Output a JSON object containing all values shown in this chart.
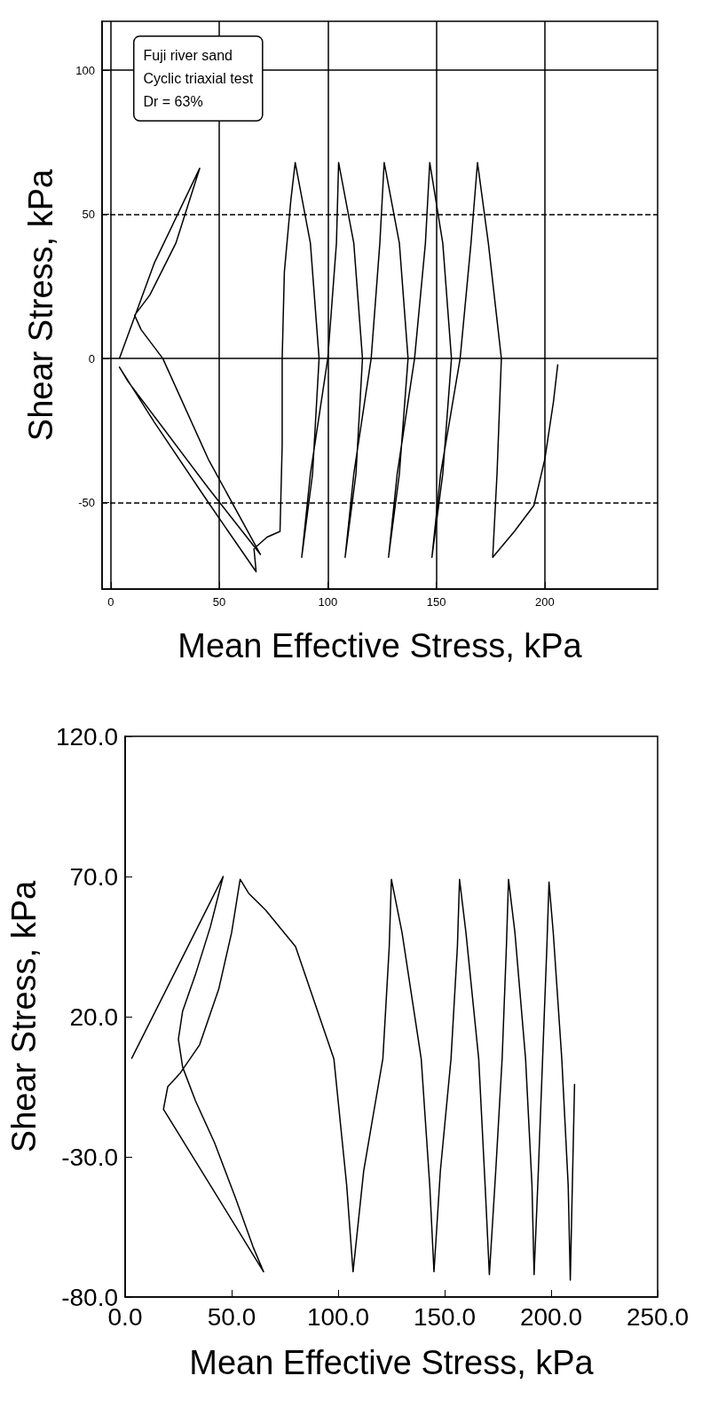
{
  "chart_data": [
    {
      "type": "line",
      "xlabel": "Mean Effective Stress, kPa",
      "ylabel": "Shear Stress, kPa",
      "annotations": [
        "Fuji river sand",
        "Cyclic triaxial test",
        "Dr = 63%"
      ],
      "xlim": [
        -4,
        252
      ],
      "xticks": [
        0,
        50,
        100,
        150,
        200
      ],
      "ylim": [
        -80,
        117
      ],
      "yticks": [
        -50,
        0,
        50,
        100
      ],
      "grid": "x",
      "ref_lines": [
        {
          "axis": "y",
          "value": 100,
          "label": null,
          "line_style": "solid"
        },
        {
          "axis": "y",
          "value": 50,
          "label": null,
          "line_style": "dashed"
        },
        {
          "axis": "y",
          "value": 0,
          "label": null,
          "line_style": "solid"
        },
        {
          "axis": "y",
          "value": -50,
          "label": null,
          "line_style": "dashed"
        }
      ],
      "series": [
        {
          "color": "#000000",
          "x": [
            4,
            20,
            41,
            30,
            18,
            11,
            14,
            24,
            45,
            69,
            45,
            25,
            8,
            4,
            20,
            45,
            67,
            66,
            72,
            78,
            79,
            79,
            80,
            83,
            85,
            92,
            96,
            93,
            88,
            92,
            100,
            104,
            105,
            112,
            116,
            113,
            108,
            112,
            120,
            124,
            126,
            133,
            137,
            133,
            128,
            132,
            140,
            145,
            147,
            153,
            157,
            153,
            148,
            152,
            161,
            166,
            169,
            174,
            180,
            178,
            176,
            186,
            195,
            200,
            204,
            206
          ],
          "values": [
            0,
            33,
            66,
            40,
            22,
            15,
            10,
            0,
            -35,
            -68,
            -45,
            -25,
            -8,
            -3,
            -22,
            -50,
            -74,
            -66,
            -62,
            -60,
            -30,
            0,
            30,
            55,
            68,
            40,
            0,
            -40,
            -69,
            -40,
            0,
            40,
            68,
            40,
            0,
            -40,
            -69,
            -40,
            0,
            40,
            68,
            40,
            0,
            -40,
            -69,
            -40,
            0,
            40,
            68,
            40,
            0,
            -40,
            -69,
            -40,
            0,
            40,
            68,
            40,
            0,
            -40,
            -69,
            -60,
            -51,
            -35,
            -15,
            -2
          ]
        }
      ]
    },
    {
      "type": "line",
      "xlabel": "Mean Effective Stress, kPa",
      "ylabel": "Shear Stress, kPa",
      "xlim": [
        0,
        250
      ],
      "xticks": [
        {
          "value": 0,
          "label": "0.0"
        },
        {
          "value": 50,
          "label": "50.0"
        },
        {
          "value": 100,
          "label": "100.0"
        },
        {
          "value": 150,
          "label": "150.0"
        },
        {
          "value": 200,
          "label": "200.0"
        },
        {
          "value": 250,
          "label": "250.0"
        }
      ],
      "ylim": [
        -80,
        120
      ],
      "yticks": [
        {
          "value": -80,
          "label": "-80.0"
        },
        {
          "value": -30,
          "label": "-30.0"
        },
        {
          "value": 20,
          "label": "20.0"
        },
        {
          "value": 70,
          "label": "70.0"
        },
        {
          "value": 120,
          "label": "120.0"
        }
      ],
      "grid": false,
      "series": [
        {
          "color": "#000000",
          "x": [
            3,
            46,
            40,
            33,
            27,
            25,
            27,
            33,
            42,
            52,
            60,
            65,
            18,
            20,
            26,
            35,
            44,
            50,
            54,
            58,
            66,
            80,
            98,
            104,
            107,
            112,
            121,
            124,
            125,
            130,
            139,
            143,
            145,
            148,
            153,
            156,
            157,
            160,
            166,
            169,
            171,
            174,
            177,
            179,
            180,
            183,
            188,
            191,
            192,
            194,
            196,
            198,
            199,
            201,
            205,
            208,
            209,
            211
          ],
          "values": [
            5,
            70,
            52,
            35,
            22,
            12,
            2,
            -10,
            -25,
            -45,
            -62,
            -71,
            -13,
            -5,
            0,
            10,
            30,
            50,
            69,
            64,
            58,
            45,
            5,
            -40,
            -71,
            -35,
            5,
            45,
            69,
            50,
            5,
            -40,
            -71,
            -35,
            5,
            45,
            69,
            50,
            5,
            -40,
            -72,
            -35,
            5,
            45,
            69,
            50,
            5,
            -40,
            -72,
            -35,
            5,
            45,
            68,
            50,
            5,
            -40,
            -74,
            -4
          ]
        }
      ]
    }
  ]
}
